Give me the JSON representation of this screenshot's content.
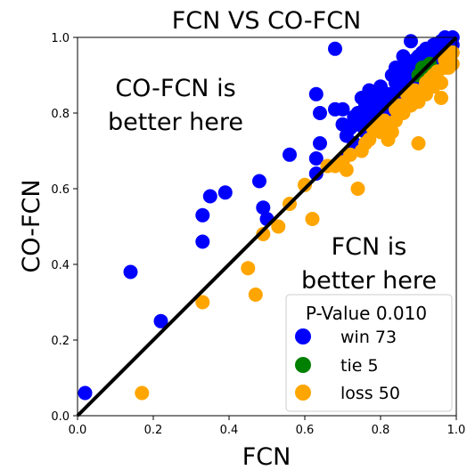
{
  "chart_data": {
    "type": "scatter",
    "title": "FCN VS CO-FCN",
    "xlabel": "FCN",
    "ylabel": "CO-FCN",
    "xlim": [
      0.0,
      1.0
    ],
    "ylim": [
      0.0,
      1.0
    ],
    "x_ticks": [
      "0.0",
      "0.2",
      "0.4",
      "0.6",
      "0.8",
      "1.0"
    ],
    "y_ticks": [
      "0.0",
      "0.2",
      "0.4",
      "0.6",
      "0.8",
      "1.0"
    ],
    "grid": false,
    "reference_line": "y = x",
    "annotations": [
      {
        "lines": [
          "CO-FCN is",
          "better here"
        ],
        "region": "upper-left"
      },
      {
        "lines": [
          "FCN is",
          "better here"
        ],
        "region": "lower-right"
      }
    ],
    "legend": {
      "title": "P-Value 0.010",
      "placement": "lower-right"
    },
    "colors": {
      "win": "#0000ff",
      "tie": "#008000",
      "loss": "#ffa500",
      "line": "#000000"
    },
    "series": [
      {
        "name": "win 73",
        "color": "win",
        "points": [
          [
            0.02,
            0.06
          ],
          [
            0.14,
            0.38
          ],
          [
            0.22,
            0.25
          ],
          [
            0.33,
            0.46
          ],
          [
            0.33,
            0.53
          ],
          [
            0.35,
            0.58
          ],
          [
            0.39,
            0.59
          ],
          [
            0.48,
            0.62
          ],
          [
            0.49,
            0.55
          ],
          [
            0.5,
            0.52
          ],
          [
            0.56,
            0.69
          ],
          [
            0.63,
            0.64
          ],
          [
            0.63,
            0.68
          ],
          [
            0.64,
            0.72
          ],
          [
            0.63,
            0.85
          ],
          [
            0.64,
            0.8
          ],
          [
            0.68,
            0.81
          ],
          [
            0.68,
            0.97
          ],
          [
            0.7,
            0.77
          ],
          [
            0.7,
            0.81
          ],
          [
            0.71,
            0.74
          ],
          [
            0.72,
            0.76
          ],
          [
            0.73,
            0.79
          ],
          [
            0.74,
            0.77
          ],
          [
            0.74,
            0.8
          ],
          [
            0.75,
            0.84
          ],
          [
            0.75,
            0.78
          ],
          [
            0.76,
            0.82
          ],
          [
            0.77,
            0.79
          ],
          [
            0.78,
            0.85
          ],
          [
            0.78,
            0.83
          ],
          [
            0.79,
            0.81
          ],
          [
            0.8,
            0.84
          ],
          [
            0.8,
            0.87
          ],
          [
            0.81,
            0.82
          ],
          [
            0.82,
            0.85
          ],
          [
            0.82,
            0.81
          ],
          [
            0.83,
            0.9
          ],
          [
            0.84,
            0.88
          ],
          [
            0.85,
            0.86
          ],
          [
            0.84,
            0.92
          ],
          [
            0.86,
            0.95
          ],
          [
            0.86,
            0.91
          ],
          [
            0.87,
            0.93
          ],
          [
            0.88,
            0.91
          ],
          [
            0.88,
            0.99
          ],
          [
            0.89,
            0.94
          ],
          [
            0.9,
            0.95
          ],
          [
            0.91,
            0.96
          ],
          [
            0.92,
            0.93
          ],
          [
            0.92,
            0.97
          ],
          [
            0.93,
            0.92
          ],
          [
            0.94,
            0.98
          ],
          [
            0.94,
            0.95
          ],
          [
            0.95,
            0.96
          ],
          [
            0.96,
            0.99
          ],
          [
            0.96,
            0.94
          ],
          [
            0.97,
            1.0
          ],
          [
            0.97,
            0.97
          ],
          [
            0.98,
            0.99
          ],
          [
            0.99,
            0.98
          ],
          [
            0.78,
            0.8
          ],
          [
            0.76,
            0.75
          ],
          [
            0.73,
            0.72
          ],
          [
            0.85,
            0.83
          ],
          [
            0.87,
            0.89
          ],
          [
            0.81,
            0.79
          ],
          [
            0.93,
            0.9
          ],
          [
            0.95,
            0.93
          ],
          [
            0.9,
            0.89
          ],
          [
            0.99,
            1.0
          ],
          [
            0.71,
            0.69
          ],
          [
            0.77,
            0.86
          ]
        ]
      },
      {
        "name": "tie 5",
        "color": "tie",
        "points": [
          [
            0.91,
            0.91
          ],
          [
            0.92,
            0.92
          ],
          [
            0.9,
            0.9
          ],
          [
            0.93,
            0.93
          ],
          [
            0.91,
            0.92
          ]
        ]
      },
      {
        "name": "loss 50",
        "color": "loss",
        "points": [
          [
            0.17,
            0.06
          ],
          [
            0.33,
            0.3
          ],
          [
            0.45,
            0.39
          ],
          [
            0.47,
            0.32
          ],
          [
            0.49,
            0.48
          ],
          [
            0.53,
            0.5
          ],
          [
            0.56,
            0.56
          ],
          [
            0.6,
            0.61
          ],
          [
            0.62,
            0.52
          ],
          [
            0.66,
            0.66
          ],
          [
            0.7,
            0.67
          ],
          [
            0.71,
            0.65
          ],
          [
            0.74,
            0.6
          ],
          [
            0.75,
            0.7
          ],
          [
            0.77,
            0.73
          ],
          [
            0.78,
            0.76
          ],
          [
            0.8,
            0.75
          ],
          [
            0.82,
            0.73
          ],
          [
            0.83,
            0.75
          ],
          [
            0.84,
            0.78
          ],
          [
            0.86,
            0.8
          ],
          [
            0.88,
            0.82
          ],
          [
            0.9,
            0.72
          ],
          [
            0.91,
            0.86
          ],
          [
            0.92,
            0.88
          ],
          [
            0.94,
            0.87
          ],
          [
            0.95,
            0.89
          ],
          [
            0.96,
            0.84
          ],
          [
            0.97,
            0.92
          ],
          [
            0.98,
            0.95
          ],
          [
            0.99,
            0.96
          ],
          [
            0.76,
            0.72
          ],
          [
            0.79,
            0.77
          ],
          [
            0.81,
            0.78
          ],
          [
            0.85,
            0.82
          ],
          [
            0.87,
            0.85
          ],
          [
            0.89,
            0.86
          ],
          [
            0.93,
            0.89
          ],
          [
            0.95,
            0.91
          ],
          [
            0.97,
            0.94
          ],
          [
            0.68,
            0.66
          ],
          [
            0.72,
            0.69
          ],
          [
            0.84,
            0.81
          ],
          [
            0.88,
            0.84
          ],
          [
            0.92,
            0.85
          ],
          [
            0.96,
            0.88
          ],
          [
            0.98,
            0.92
          ],
          [
            0.99,
            0.93
          ],
          [
            0.9,
            0.83
          ],
          [
            0.94,
            0.9
          ]
        ]
      }
    ]
  }
}
